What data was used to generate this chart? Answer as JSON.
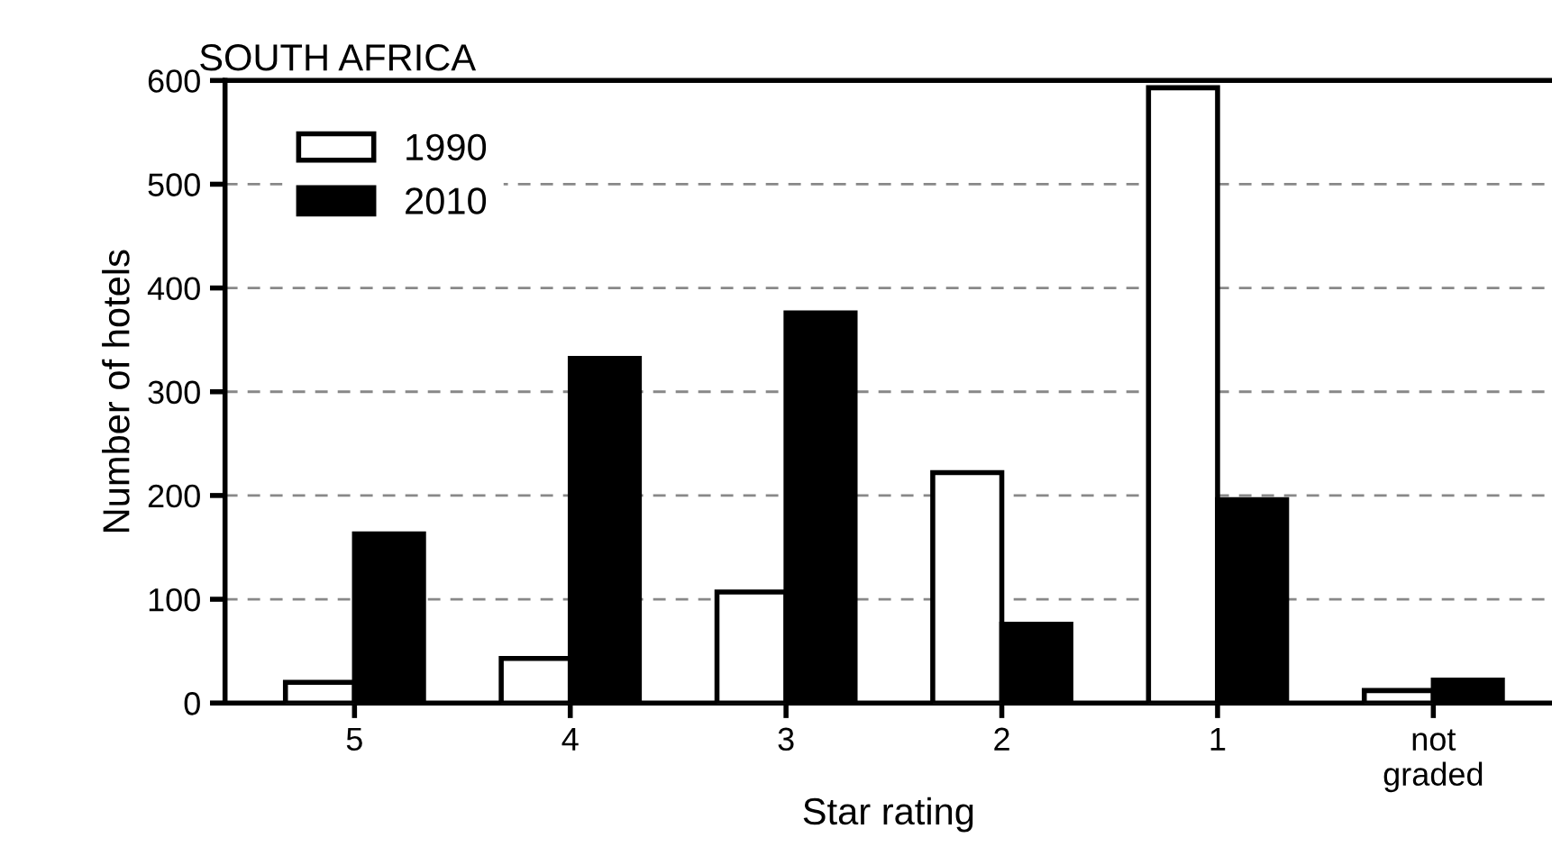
{
  "chart_data": {
    "type": "bar",
    "title": "SOUTH AFRICA",
    "xlabel": "Star rating",
    "ylabel": "Number of hotels",
    "categories": [
      "5",
      "4",
      "3",
      "2",
      "1",
      "not\ngraded"
    ],
    "series": [
      {
        "name": "1990",
        "color": "#ffffff",
        "values": [
          20,
          43,
          107,
          222,
          593,
          12
        ]
      },
      {
        "name": "2010",
        "color": "#000000",
        "values": [
          163,
          332,
          376,
          76,
          196,
          22
        ]
      }
    ],
    "ylim": [
      0,
      600
    ],
    "yticks": [
      0,
      100,
      200,
      300,
      400,
      500,
      600
    ],
    "grid": "y",
    "legend": "top left"
  }
}
